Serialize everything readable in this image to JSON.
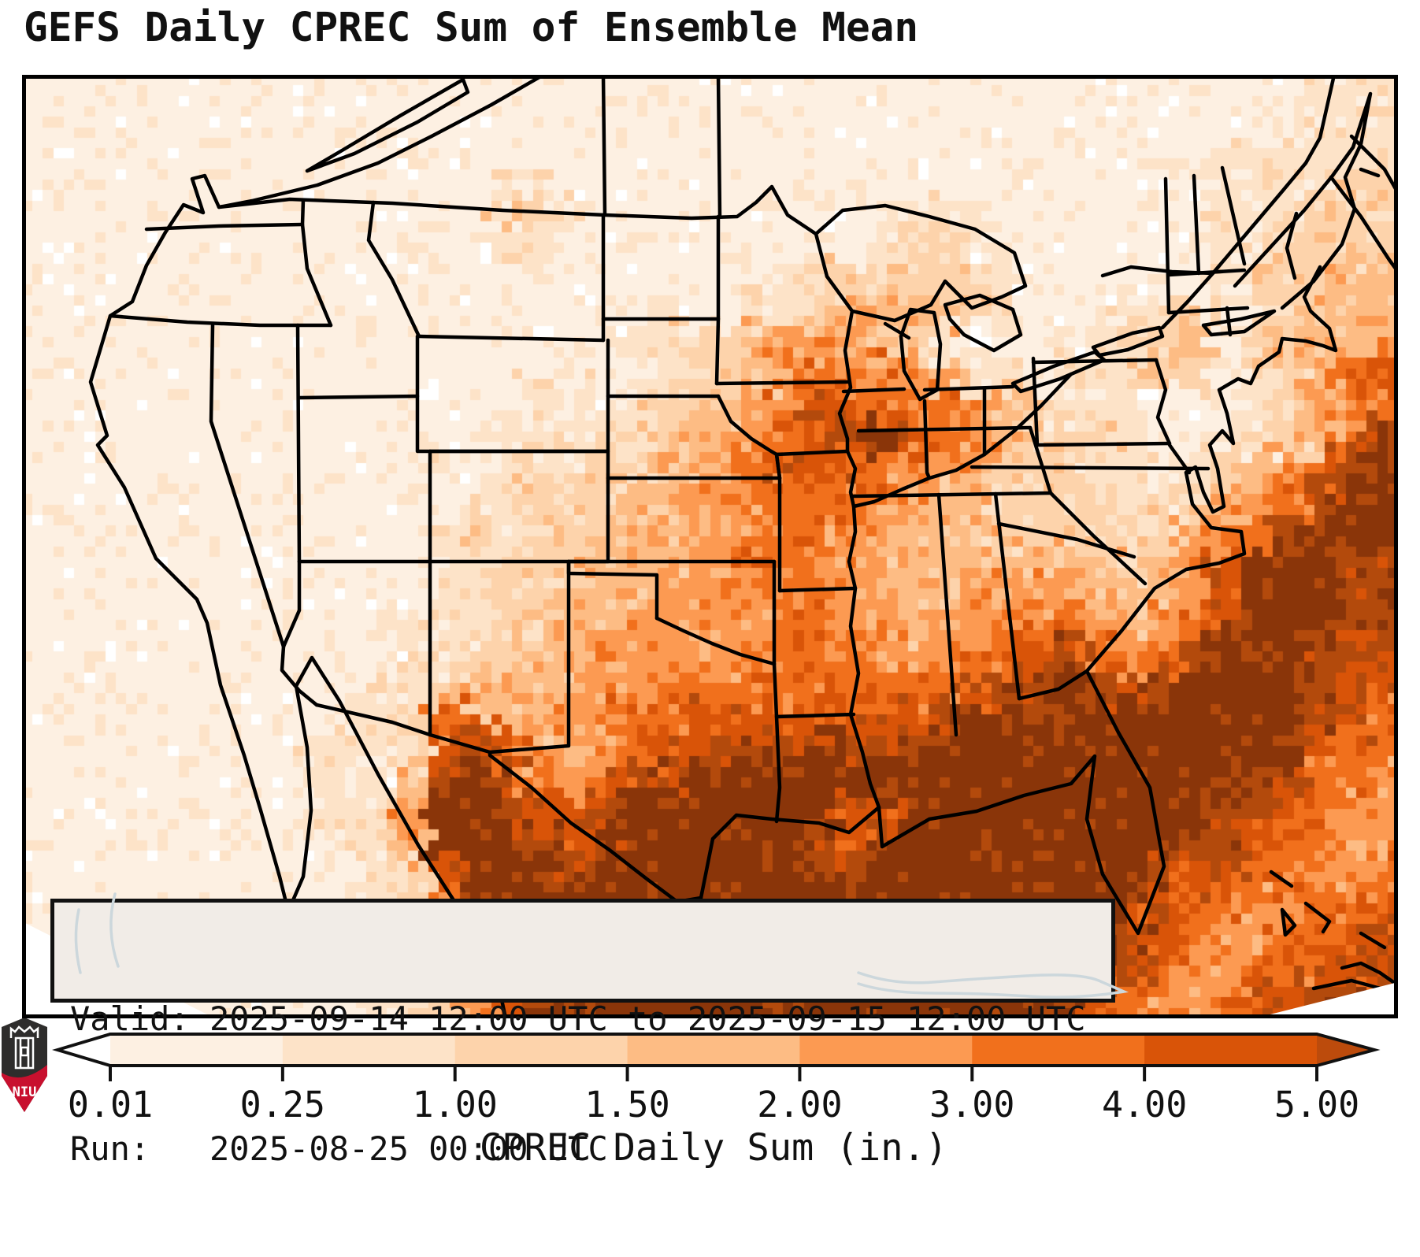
{
  "title": "GEFS Daily CPREC Sum of Ensemble Mean",
  "info_box": {
    "valid_line": "Valid: 2025-09-14 12:00 UTC to 2025-09-15 12:00 UTC",
    "run_line": "Run:   2025-08-25 00:00 UTC"
  },
  "colorbar": {
    "label": "CPREC Daily Sum (in.)",
    "tick_labels": [
      "0.01",
      "0.25",
      "1.00",
      "1.50",
      "2.00",
      "3.00",
      "4.00",
      "5.00"
    ],
    "segment_colors": [
      "#fdf0e2",
      "#fde3c8",
      "#fdd3ab",
      "#fdbc84",
      "#fc9a52",
      "#f1701c",
      "#d95408"
    ],
    "under_arrow_color": "#ffffff",
    "over_arrow_color": "#bc4b0c",
    "outline_color": "#111111"
  },
  "logo": {
    "text": "NIU",
    "shield_color": "#2e2d2c",
    "band_color": "#c8102e",
    "castle_color": "#ffffff"
  },
  "map": {
    "frame_color": "#000000",
    "coast_color": "#000000",
    "ghost_coast_color": "#ccd7dc",
    "field": {
      "palette": [
        "#ffffff",
        "#fdf0e2",
        "#fde3c8",
        "#fdd3ab",
        "#fdbc84",
        "#fc9a52",
        "#f1701c",
        "#d95408",
        "#b34a0c",
        "#8a3509"
      ],
      "cols": 44,
      "rows": 30,
      "values": [
        "11111111111111111111111111111111111111111222",
        "11111111111111111111111111111111111111112222",
        "11111111111111111111111111111111111111222222",
        "11111111111111122111111111111111111111222233",
        "11111111111111133211111111112221111111222333",
        "11111111111111122111111111123322111111223333",
        "11111111111111111111111123333332111111233344",
        "11111111111111111111211223444432111233123444",
        "11111111111111111112233455543211122334134445",
        "11111111111111112211233456665422122233123567",
        "11111111111111112212334567766654322211123456 7",
        "11111111111111122122344567897654333211223468 9",
        "11111111111112122233445677765543332212345689",
        "11111111111111223334455666655443333223456899",
        "11111111111112322334445566554443333234568999",
        "11111111111112233344455665554444444345799988",
        "11111111111112233444555566544455554445799988",
        "11111111111122233445555566554556665456899988",
        "11111111111122334455555666655566786568999887",
        "11111111111223444455566666666678898789999877",
        "11111111112236744556677777777899999999999876",
        "11111111122237875456678889888999999999999766",
        "11111111122248986567899999999999999999988665",
        "11111111122359987789999999779999999999887655",
        "11111111112249998789999998789999999998876655",
        "11111111111237999899999999899999999987766556",
        "11111111111236899999999999999999999876655667",
        "11111111111235799999999999999999999876556677",
        "11111111111224689999999999999999998765566778",
        "11111111111223579999999999999999997655677888"
      ]
    }
  }
}
